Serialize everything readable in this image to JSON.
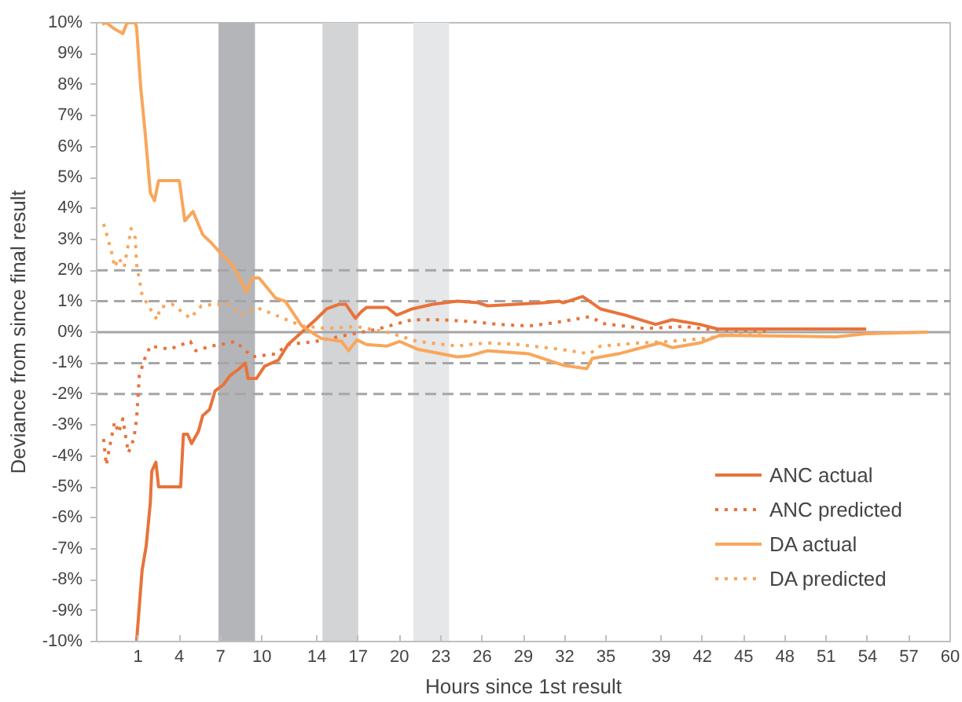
{
  "chart_data": {
    "type": "line",
    "xlabel": "Hours since 1st result",
    "ylabel": "Deviance from since final result",
    "xlim": [
      -2,
      60
    ],
    "ylim": [
      -10,
      10
    ],
    "xticks": [
      1,
      4,
      7,
      10,
      14,
      17,
      20,
      23,
      26,
      29,
      32,
      35,
      39,
      42,
      45,
      48,
      51,
      54,
      57,
      60
    ],
    "yticks": [
      {
        "value": -10,
        "label": "-10%"
      },
      {
        "value": -9,
        "label": "-9%"
      },
      {
        "value": -8,
        "label": "-8%"
      },
      {
        "value": -7,
        "label": "-7%"
      },
      {
        "value": -6,
        "label": "-6%"
      },
      {
        "value": -5,
        "label": "-5%"
      },
      {
        "value": -4,
        "label": "-4%"
      },
      {
        "value": -3,
        "label": "-3%"
      },
      {
        "value": -2,
        "label": "-2%"
      },
      {
        "value": -1,
        "label": "-1%"
      },
      {
        "value": 0,
        "label": "0%"
      },
      {
        "value": 1,
        "label": "1%"
      },
      {
        "value": 2,
        "label": "2%"
      },
      {
        "value": 3,
        "label": "3%"
      },
      {
        "value": 4,
        "label": "4%"
      },
      {
        "value": 5,
        "label": "5%"
      },
      {
        "value": 6,
        "label": "6%"
      },
      {
        "value": 7,
        "label": "7%"
      },
      {
        "value": 8,
        "label": "8%"
      },
      {
        "value": 9,
        "label": "9%"
      },
      {
        "value": 10,
        "label": "10%"
      }
    ],
    "bands": [
      {
        "axis": "x",
        "from": 6.85,
        "to": 9.5,
        "label": null,
        "color": "#b4b5b8"
      },
      {
        "axis": "x",
        "from": 14.4,
        "to": 17,
        "label": null,
        "color": "#d3d4d6"
      },
      {
        "axis": "x",
        "from": 21,
        "to": 23.6,
        "label": null,
        "color": "#e6e7e8"
      }
    ],
    "ref_lines": [
      {
        "axis": "y",
        "value": 2,
        "label": null,
        "color": "#a6a6a6",
        "line_style": "dashed"
      },
      {
        "axis": "y",
        "value": 1,
        "label": null,
        "color": "#a6a6a6",
        "line_style": "dashed"
      },
      {
        "axis": "y",
        "value": 0,
        "label": null,
        "color": "#a6a6a6",
        "line_style": "solid"
      },
      {
        "axis": "y",
        "value": -1,
        "label": null,
        "color": "#a6a6a6",
        "line_style": "dashed"
      },
      {
        "axis": "y",
        "value": -2,
        "label": null,
        "color": "#a6a6a6",
        "line_style": "dashed"
      }
    ],
    "legend": "bottom right",
    "series": [
      {
        "name": "ANC actual",
        "color": "#e8733a",
        "line_style": "solid",
        "x": [
          0.9,
          1.3,
          1.6,
          1.9,
          2.0,
          2.3,
          2.5,
          4.1,
          4.3,
          4.6,
          4.9,
          5.4,
          5.7,
          6.2,
          6.6,
          7.2,
          7.7,
          8.3,
          8.8,
          9.0,
          9.6,
          10.2,
          11.2,
          11.9,
          12.9,
          13.9,
          14.7,
          15.6,
          16.1,
          16.8,
          17.2,
          17.6,
          19.1,
          19.8,
          20.9,
          22.4,
          24.2,
          25.7,
          26.4,
          30.5,
          31.6,
          31.9,
          33.3,
          33.8,
          34.6,
          36.4,
          38.6,
          39.8,
          41.8,
          43.1,
          53.9
        ],
        "values": [
          -10,
          -7.7,
          -6.9,
          -5.5,
          -4.5,
          -4.2,
          -5,
          -5,
          -3.3,
          -3.3,
          -3.6,
          -3.2,
          -2.7,
          -2.5,
          -1.9,
          -1.7,
          -1.4,
          -1.2,
          -1,
          -1.5,
          -1.5,
          -1.1,
          -0.9,
          -0.4,
          0,
          0.4,
          0.75,
          0.9,
          0.9,
          0.45,
          0.65,
          0.8,
          0.8,
          0.55,
          0.75,
          0.9,
          1.0,
          0.95,
          0.85,
          0.95,
          1.0,
          0.95,
          1.15,
          1.0,
          0.75,
          0.55,
          0.25,
          0.4,
          0.25,
          0.1,
          0.1
        ]
      },
      {
        "name": "ANC predicted",
        "color": "#e8733a",
        "line_style": "dotted",
        "x": [
          -1.5,
          -1.3,
          -1.1,
          -0.7,
          -0.4,
          -0.1,
          0.3,
          0.7,
          0.9,
          1.1,
          1.5,
          1.9,
          3.3,
          4.8,
          5.2,
          6.3,
          7.0,
          8.1,
          9.3,
          11.0,
          11.9,
          13.9,
          16.1,
          18.4,
          20.9,
          23.1,
          25.0,
          27.2,
          29.4,
          31.2,
          33.8,
          34.9,
          37.8,
          40.7,
          42.9,
          46.6
        ],
        "values": [
          -3.45,
          -4.3,
          -3.8,
          -2.9,
          -3.25,
          -2.8,
          -3.9,
          -3.45,
          -2.8,
          -1.4,
          -0.85,
          -0.45,
          -0.55,
          -0.3,
          -0.6,
          -0.45,
          -0.4,
          -0.3,
          -0.8,
          -0.7,
          -0.4,
          -0.3,
          -0.1,
          0.1,
          0.4,
          0.4,
          0.35,
          0.25,
          0.2,
          0.3,
          0.5,
          0.27,
          0.12,
          0.18,
          0.07,
          0.03
        ]
      },
      {
        "name": "DA actual",
        "color": "#f9a65a",
        "line_style": "solid",
        "x": [
          -1.6,
          -1.3,
          -0.7,
          -0.1,
          0.2,
          0.8,
          0.9,
          1.2,
          1.5,
          1.9,
          2.2,
          2.5,
          4.0,
          4.4,
          5.0,
          5.7,
          6.3,
          7.0,
          7.8,
          8.5,
          8.9,
          9.3,
          9.8,
          11.0,
          11.7,
          12.9,
          14.3,
          15.8,
          16.3,
          16.9,
          17.6,
          19.1,
          20.0,
          21.3,
          24.2,
          25.0,
          26.4,
          29.4,
          31.9,
          33.6,
          34.0,
          35.9,
          38.9,
          39.8,
          41.8,
          43.3,
          51.7,
          53.9,
          58.4
        ],
        "values": [
          9.95,
          10,
          9.8,
          9.65,
          10,
          10,
          9.85,
          7.9,
          6.55,
          4.5,
          4.25,
          4.9,
          4.9,
          3.6,
          3.9,
          3.15,
          2.9,
          2.55,
          2.2,
          1.65,
          1.3,
          1.75,
          1.75,
          1.1,
          1.0,
          0.2,
          -0.2,
          -0.3,
          -0.6,
          -0.25,
          -0.4,
          -0.45,
          -0.3,
          -0.55,
          -0.8,
          -0.77,
          -0.6,
          -0.7,
          -1.07,
          -1.18,
          -0.85,
          -0.7,
          -0.35,
          -0.5,
          -0.35,
          -0.1,
          -0.15,
          -0.05,
          0
        ]
      },
      {
        "name": "DA predicted",
        "color": "#f9a65a",
        "line_style": "dotted",
        "x": [
          -1.5,
          -1.2,
          -0.9,
          -0.7,
          -0.4,
          0.0,
          0.5,
          0.8,
          0.9,
          1.3,
          1.9,
          2.4,
          2.6,
          3.5,
          4.8,
          5.6,
          6.6,
          7.6,
          8.5,
          9.6,
          11.0,
          12.9,
          14.7,
          16.9,
          19.1,
          20.2,
          21.3,
          24.2,
          25.0,
          26.4,
          28.6,
          31.6,
          33.8,
          34.6,
          37.4,
          39.6,
          42.2,
          43.7,
          46.6
        ],
        "values": [
          3.5,
          3.05,
          2.55,
          2.1,
          2.4,
          2.1,
          3.35,
          3.05,
          2.2,
          1.2,
          0.75,
          0.4,
          0.8,
          0.9,
          0.45,
          0.85,
          0.9,
          0.9,
          0.55,
          0.8,
          0.55,
          0.2,
          0.12,
          0.18,
          0,
          -0.15,
          -0.3,
          -0.45,
          -0.4,
          -0.35,
          -0.4,
          -0.55,
          -0.7,
          -0.45,
          -0.35,
          -0.3,
          -0.2,
          -0.1,
          -0.05
        ]
      }
    ]
  }
}
